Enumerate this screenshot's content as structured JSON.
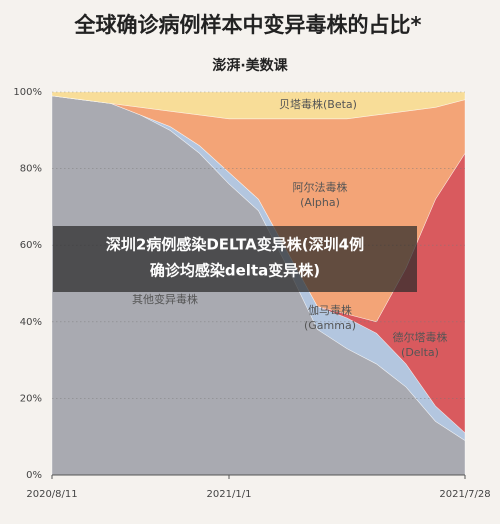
{
  "chart_data": {
    "type": "stacked_area",
    "title": "全球确诊病例样本中变异毒株的占比*",
    "subtitle": "澎湃·美数课",
    "categories": [
      "2020/8/11",
      null,
      null,
      null,
      null,
      null,
      "2021/1/1",
      null,
      null,
      null,
      null,
      null,
      null,
      null,
      "2021/7/28"
    ],
    "series": [
      {
        "name": "其他变异毒株",
        "color": "#a9aab1",
        "values": [
          99,
          98,
          97,
          94,
          90,
          84,
          76,
          69,
          54,
          38,
          33,
          29,
          23,
          14,
          9
        ]
      },
      {
        "name": "伽马毒株",
        "name_note": "(Gamma)",
        "color": "#b3c6df",
        "values": [
          0,
          0,
          0,
          0,
          1,
          2,
          3,
          3,
          4,
          6,
          8,
          8,
          6,
          4,
          2
        ]
      },
      {
        "name": "德尔塔毒株",
        "name_note": "(Delta)",
        "color": "#d95a5e",
        "values": [
          0,
          0,
          0,
          0,
          0,
          0,
          0,
          0,
          0,
          0,
          1,
          3,
          25,
          54,
          73
        ]
      },
      {
        "name": "阿尔法毒株",
        "name_note": "(Alpha)",
        "color": "#f3a477",
        "values": [
          0,
          0,
          0,
          2,
          4,
          8,
          14,
          21,
          35,
          49,
          51,
          54,
          41,
          24,
          14
        ]
      },
      {
        "name": "贝塔毒株(Beta)",
        "color": "#f8dd98",
        "values": [
          1,
          2,
          3,
          4,
          5,
          6,
          7,
          7,
          7,
          7,
          7,
          6,
          5,
          4,
          2
        ]
      }
    ],
    "ylim": [
      0,
      100
    ],
    "yticks": [
      {
        "value": 0,
        "label": "0%"
      },
      {
        "value": 20,
        "label": "20%"
      },
      {
        "value": 40,
        "label": "40%"
      },
      {
        "value": 60,
        "label": "60%"
      },
      {
        "value": 80,
        "label": "80%"
      },
      {
        "value": 100,
        "label": "100%"
      }
    ],
    "grid": true,
    "overlay": [
      "深圳2病例感染DELTA变异株(深圳4例",
      "确诊均感染delta变异株)"
    ]
  }
}
